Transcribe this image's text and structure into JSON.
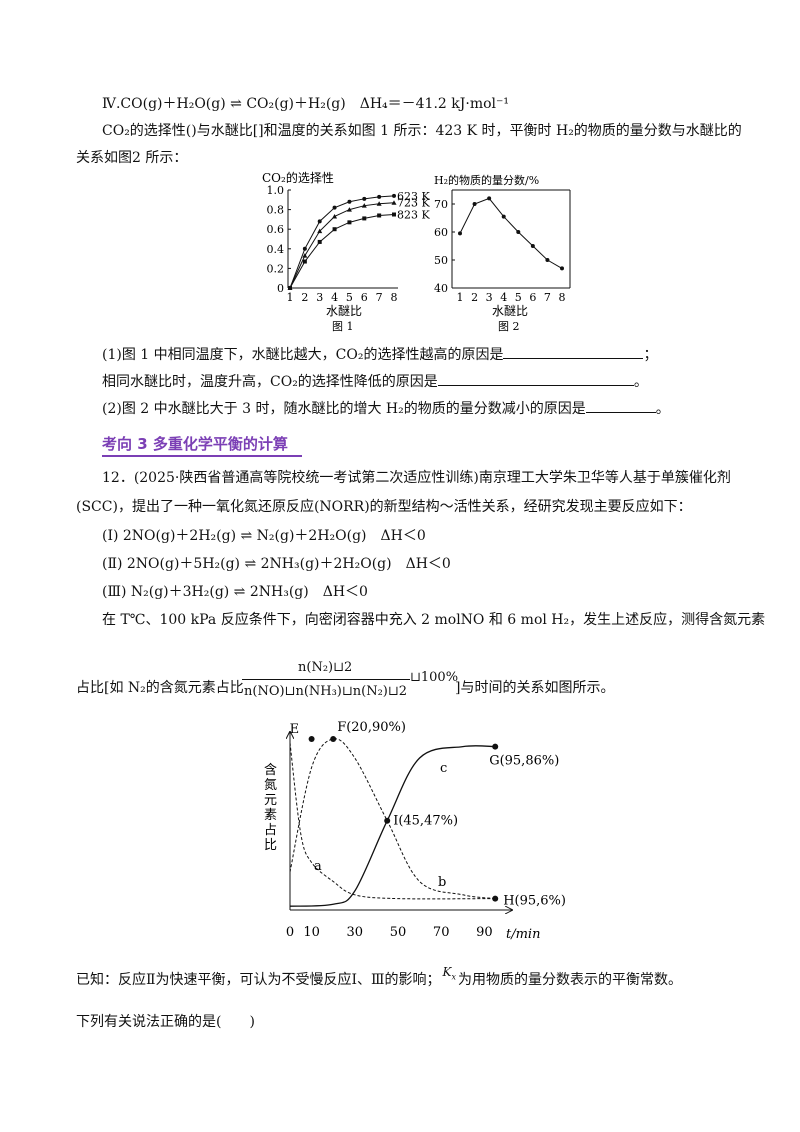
{
  "reaction4": {
    "text": "Ⅳ.CO(g)＋H₂O(g) ⇌ CO₂(g)＋H₂(g)　ΔH₄＝－41.2 kJ·mol⁻¹"
  },
  "intro1": "CO₂的选择性()与水醚比[]和温度的关系如图 1 所示：423 K 时，平衡时 H₂的物质的量分数与水醚比的",
  "intro2": "关系如图2 所示：",
  "fig1": {
    "ylabel": "CO₂的选择性",
    "xlabel": "水醚比",
    "caption": "图 1",
    "yticks": [
      "1.0",
      "0.8",
      "0.6",
      "0.4",
      "0.2",
      "0"
    ],
    "xticks": [
      "1",
      "2",
      "3",
      "4",
      "5",
      "6",
      "7",
      "8"
    ],
    "legend": [
      "623 K",
      "723 K",
      "823 K"
    ]
  },
  "fig2": {
    "ylabel": "H₂的物质的量分数/%",
    "xlabel": "水醚比",
    "caption": "图 2",
    "yticks": [
      "70",
      "60",
      "50",
      "40"
    ],
    "xticks": [
      "1",
      "2",
      "3",
      "4",
      "5",
      "6",
      "7",
      "8"
    ]
  },
  "q1a": "(1)图 1 中相同温度下，水醚比越大，CO₂的选择性越高的原因是",
  "q1a_end": "；",
  "q1b": "相同水醚比时，温度升高，CO₂的选择性降低的原因是",
  "q1b_end": "。",
  "q2": "(2)图 2 中水醚比大于 3 时，随水醚比的增大 H₂的物质的量分数减小的原因是",
  "q2_end": "。",
  "heading": "考向 3 多重化学平衡的计算",
  "p12a": "12．(2025·陕西省普通高等院校统一考试第二次适应性训练)南京理工大学朱卫华等人基于单簇催化剂",
  "p12b": "(SCC)，提出了一种一氧化氮还原反应(NORR)的新型结构～活性关系，经研究发现主要反应如下：",
  "r1": "(Ⅰ) 2NO(g)＋2H₂(g) ⇌ N₂(g)＋2H₂O(g)　ΔH＜0",
  "r2": "(Ⅱ) 2NO(g)＋5H₂(g) ⇌ 2NH₃(g)＋2H₂O(g)　ΔH＜0",
  "r3": "(Ⅲ) N₂(g)＋3H₂(g) ⇌ 2NH₃(g)　ΔH＜0",
  "cond": "在 T℃、100 kPa 反应条件下，向密闭容器中充入 2 molNO 和 6 mol H₂，发生上述反应，测得含氮元素",
  "frac": {
    "pre": "占比[如 N₂的含氮元素占比",
    "num": "n(N₂)⊔2",
    "den": "n(NO)⊔n(NH₃)⊔n(N₂)⊔2",
    "pct": "⊔100%",
    "post": "]与时间的关系如图所示。"
  },
  "fig3": {
    "ylabel": "含氮元素占比",
    "xticks": [
      "0",
      "10",
      "30",
      "50",
      "70",
      "90"
    ],
    "xunit": "t/min",
    "labels": {
      "E": "E",
      "F": "F(20,90%)",
      "G": "G(95,86%)",
      "I": "I(45,47%)",
      "H": "H(95,6%)",
      "a": "a",
      "b": "b",
      "c": "c"
    }
  },
  "known": "已知：反应Ⅱ为快速平衡，可认为不受慢反应Ⅰ、Ⅲ的影响；",
  "kx": "K",
  "known_end": "为用物质的量分数表示的平衡常数。",
  "ask": "下列有关说法正确的是(　　)",
  "chart_data": [
    {
      "type": "line",
      "title": "CO₂的选择性",
      "xlabel": "水醚比",
      "ylabel": "CO₂的选择性",
      "x": [
        1,
        2,
        3,
        4,
        5,
        6,
        7,
        8
      ],
      "ylim": [
        0,
        1.0
      ],
      "series": [
        {
          "name": "623 K",
          "values": [
            0.0,
            0.4,
            0.68,
            0.82,
            0.88,
            0.91,
            0.93,
            0.94
          ]
        },
        {
          "name": "723 K",
          "values": [
            0.0,
            0.33,
            0.58,
            0.73,
            0.8,
            0.84,
            0.86,
            0.87
          ]
        },
        {
          "name": "823 K",
          "values": [
            0.0,
            0.27,
            0.47,
            0.6,
            0.67,
            0.71,
            0.74,
            0.75
          ]
        }
      ]
    },
    {
      "type": "line",
      "title": "H₂的物质的量分数/%",
      "xlabel": "水醚比",
      "ylabel": "H₂的物质的量分数/%",
      "x": [
        1,
        2,
        3,
        4,
        5,
        6,
        7,
        8
      ],
      "ylim": [
        40,
        75
      ],
      "series": [
        {
          "values": [
            59.5,
            70,
            72,
            65.5,
            60,
            55,
            50,
            47
          ]
        }
      ]
    },
    {
      "type": "line",
      "xlabel": "t/min",
      "ylabel": "含氮元素占比",
      "x_ticks": [
        0,
        10,
        30,
        50,
        70,
        90
      ],
      "series": [
        {
          "name": "a",
          "points": [
            [
              0,
              88
            ],
            [
              5,
              40
            ],
            [
              10,
              25
            ],
            [
              20,
              15
            ],
            [
              30,
              8
            ],
            [
              50,
              6
            ],
            [
              95,
              6
            ]
          ]
        },
        {
          "name": "b",
          "points": [
            [
              0,
              20
            ],
            [
              10,
              75
            ],
            [
              20,
              90
            ],
            [
              30,
              80
            ],
            [
              45,
              47
            ],
            [
              60,
              15
            ],
            [
              80,
              8
            ],
            [
              95,
              6
            ]
          ]
        },
        {
          "name": "c",
          "points": [
            [
              0,
              2
            ],
            [
              20,
              3
            ],
            [
              30,
              10
            ],
            [
              45,
              47
            ],
            [
              60,
              80
            ],
            [
              80,
              86
            ],
            [
              95,
              86
            ]
          ]
        }
      ],
      "points": [
        {
          "label": "E",
          "x": 10,
          "y": 90
        },
        {
          "label": "F",
          "x": 20,
          "y": 90
        },
        {
          "label": "G",
          "x": 95,
          "y": 86
        },
        {
          "label": "I",
          "x": 45,
          "y": 47
        },
        {
          "label": "H",
          "x": 95,
          "y": 6
        }
      ]
    }
  ]
}
